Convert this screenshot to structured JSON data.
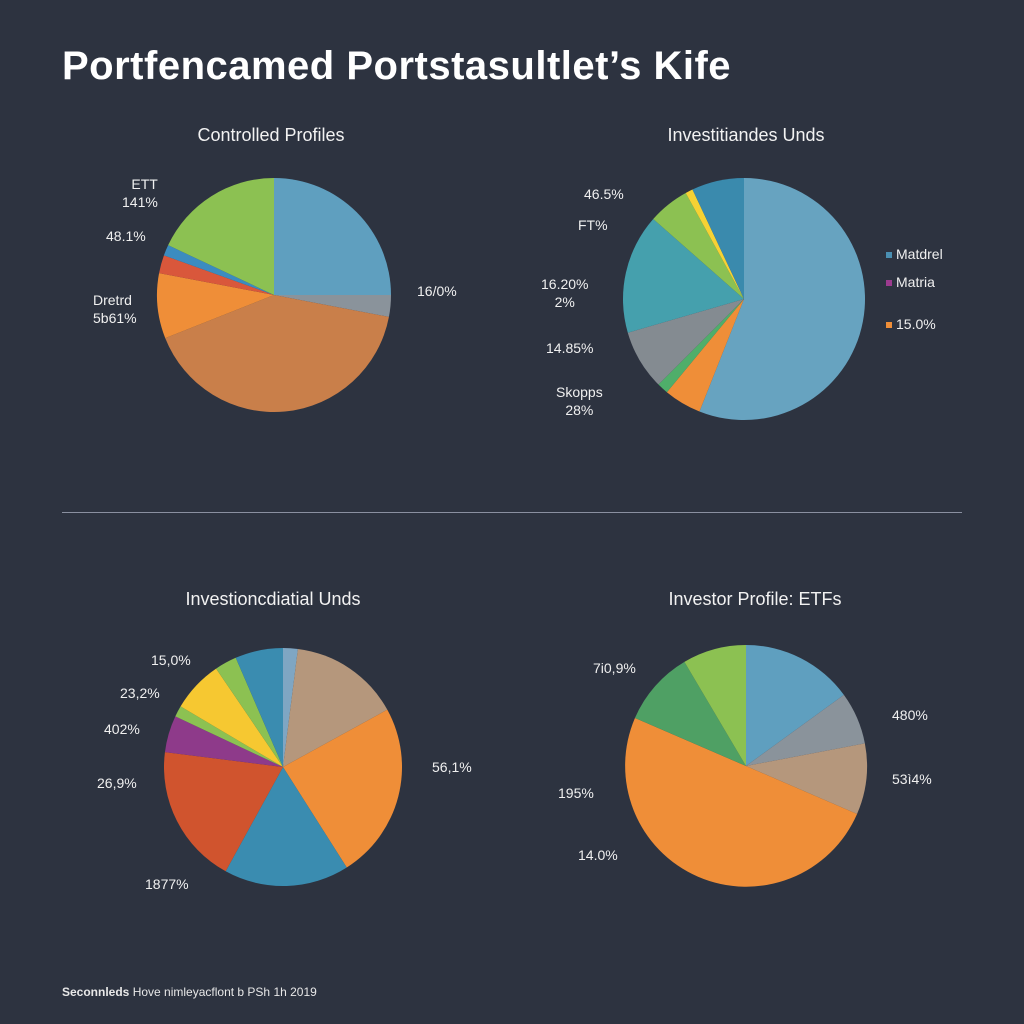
{
  "title": "Portfencamed Portstasultlet’s Kife",
  "footer": {
    "bold": "Seconnleds",
    "text": "Hove nimleyacflont b PSh 1h 2019"
  },
  "chart_data": [
    {
      "type": "pie",
      "title": "Controlled Profiles",
      "slices": [
        {
          "value": 25.0,
          "color": "#5f9fbf"
        },
        {
          "value": 3.0,
          "color": "#8a939b"
        },
        {
          "value": 41.0,
          "color": "#c97f4a"
        },
        {
          "value": 9.0,
          "color": "#ef8e38"
        },
        {
          "value": 2.5,
          "color": "#d9573b"
        },
        {
          "value": 1.5,
          "color": "#3b8cc0"
        },
        {
          "value": 18.0,
          "color": "#8cc152"
        }
      ],
      "labels": [
        "ETT\n141%",
        "48.1%",
        "Dretrd\n5b61%",
        "16/0%"
      ]
    },
    {
      "type": "pie",
      "title": "Investitiandes Unds",
      "slices": [
        {
          "value": 56.0,
          "color": "#67a3c0"
        },
        {
          "value": 5.0,
          "color": "#ef8e38"
        },
        {
          "value": 1.5,
          "color": "#4fae6a"
        },
        {
          "value": 8.0,
          "color": "#848b91"
        },
        {
          "value": 16.0,
          "color": "#45a0ad"
        },
        {
          "value": 5.5,
          "color": "#8cc152"
        },
        {
          "value": 1.0,
          "color": "#f6d234"
        },
        {
          "value": 7.0,
          "color": "#3a8aad"
        }
      ],
      "labels": [
        "46.5%",
        "FT%",
        "16.20%\n2%",
        "14.85%",
        "Skopps\n28%"
      ],
      "legend": [
        {
          "label": "Matdrel",
          "color": "#4a8fb2"
        },
        {
          "label": "Matria",
          "color": "#9c3b8f"
        },
        {
          "label": "15.0%",
          "color": "#ef8e38"
        }
      ]
    },
    {
      "type": "pie",
      "title": "Investioncdiatial Unds",
      "slices": [
        {
          "value": 2.0,
          "color": "#7fa6c3"
        },
        {
          "value": 15.0,
          "color": "#b5977c"
        },
        {
          "value": 24.0,
          "color": "#ef8e38"
        },
        {
          "value": 17.0,
          "color": "#3a8cb0"
        },
        {
          "value": 19.0,
          "color": "#d0542e"
        },
        {
          "value": 5.0,
          "color": "#8e3a8a"
        },
        {
          "value": 1.5,
          "color": "#8cc152"
        },
        {
          "value": 7.0,
          "color": "#f6c831"
        },
        {
          "value": 3.0,
          "color": "#8cc152"
        },
        {
          "value": 6.5,
          "color": "#3a8cb0"
        }
      ],
      "labels": [
        "15,0%",
        "23,2%",
        "402%",
        "26,9%",
        "1877%",
        "56,1%"
      ]
    },
    {
      "type": "pie",
      "title": "Investor Profile: ETFs",
      "slices": [
        {
          "value": 15.0,
          "color": "#5f9fbf"
        },
        {
          "value": 7.0,
          "color": "#8a939b"
        },
        {
          "value": 9.5,
          "color": "#b5977c"
        },
        {
          "value": 50.0,
          "color": "#ef8e38"
        },
        {
          "value": 10.0,
          "color": "#4fa064"
        },
        {
          "value": 8.5,
          "color": "#8cc152"
        }
      ],
      "labels": [
        "7i0,9%",
        "480%",
        "53ì4%",
        "195%",
        "14.0%"
      ]
    }
  ]
}
